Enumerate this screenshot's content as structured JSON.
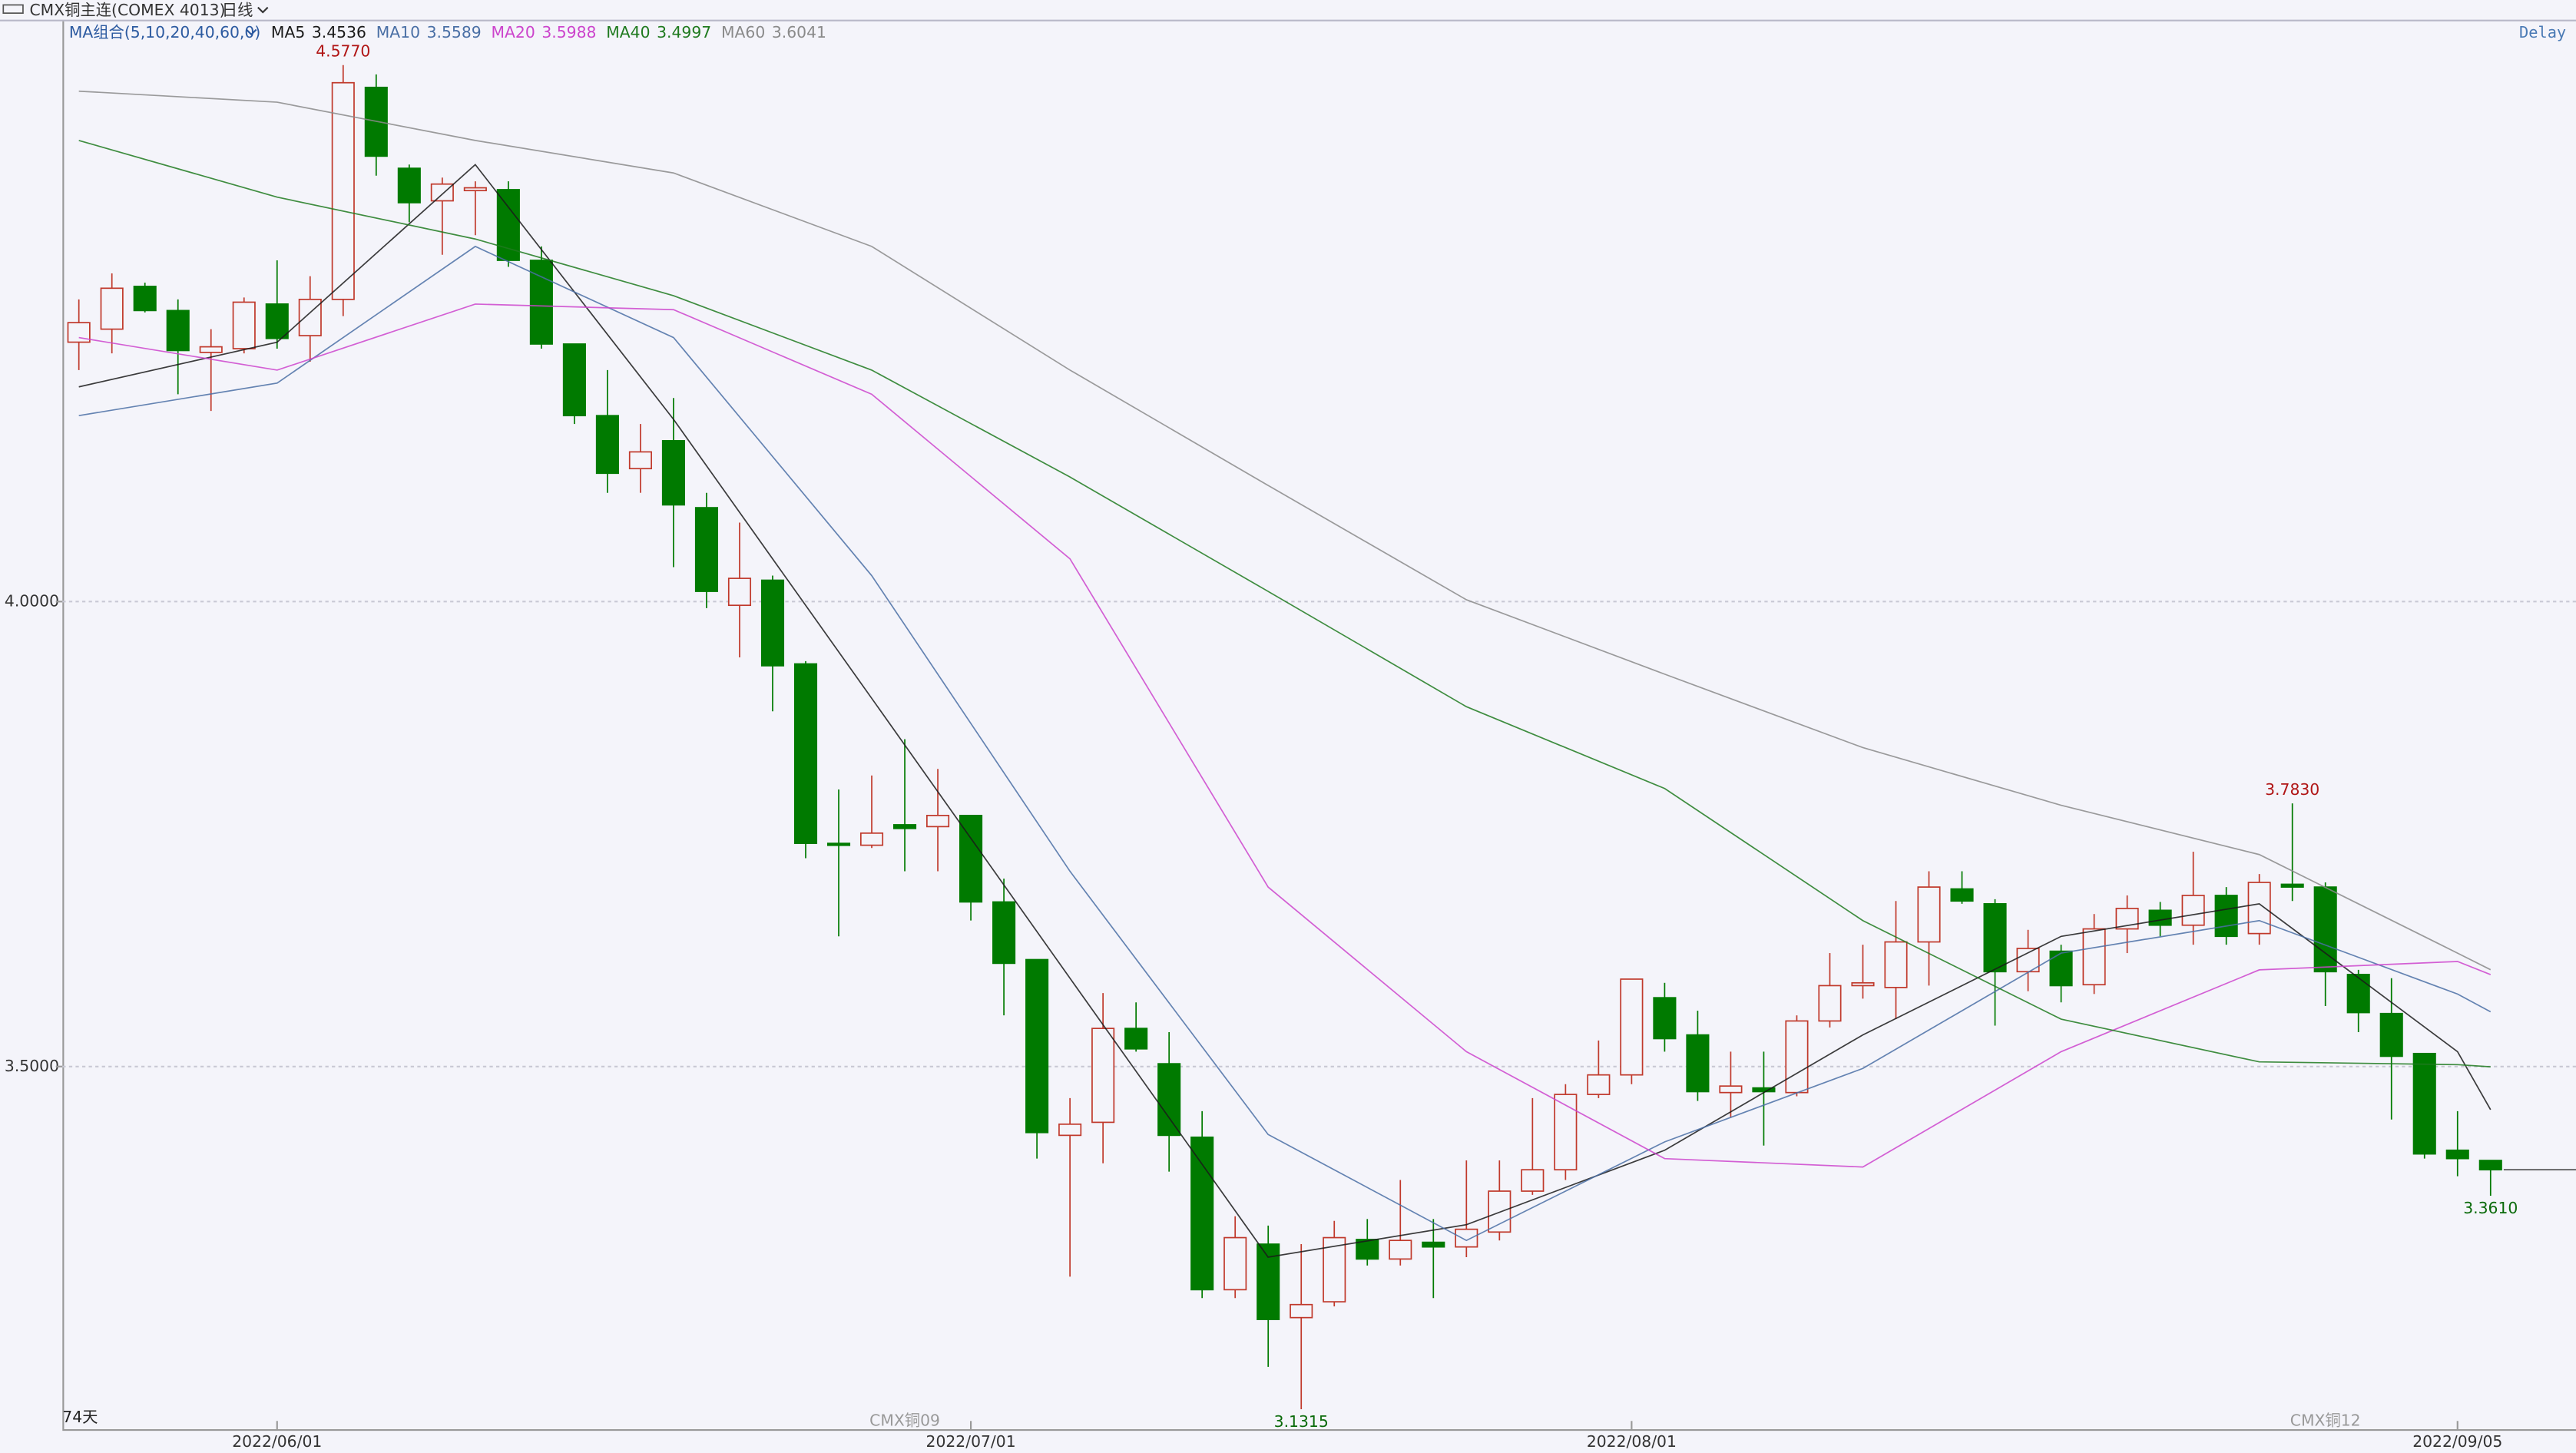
{
  "header": {
    "symbol": "CMX铜主连(COMEX 4013)",
    "period": "日线",
    "ma_group": "MA组合(5,10,20,40,60,0)",
    "status": "Delay",
    "count": "74天"
  },
  "chart_data": {
    "type": "candlestick",
    "categories": [
      null,
      null,
      null,
      null,
      null,
      null,
      "2022/06/01",
      null,
      null,
      null,
      null,
      null,
      null,
      null,
      null,
      null,
      null,
      null,
      null,
      null,
      null,
      null,
      null,
      null,
      null,
      null,
      null,
      "2022/07/01",
      null,
      null,
      null,
      null,
      null,
      null,
      null,
      null,
      null,
      null,
      null,
      null,
      null,
      null,
      null,
      null,
      null,
      null,
      null,
      "2022/08/01",
      null,
      null,
      null,
      null,
      null,
      null,
      null,
      null,
      null,
      null,
      null,
      null,
      null,
      null,
      null,
      null,
      null,
      null,
      null,
      null,
      null,
      null,
      null,
      null,
      "2022/09/05",
      null
    ],
    "contracts": [
      null,
      null,
      null,
      null,
      null,
      null,
      null,
      null,
      null,
      null,
      null,
      null,
      null,
      null,
      null,
      null,
      null,
      null,
      null,
      null,
      null,
      null,
      null,
      null,
      null,
      "CMX铜09",
      null,
      null,
      null,
      null,
      null,
      null,
      null,
      null,
      null,
      null,
      null,
      null,
      null,
      null,
      null,
      null,
      null,
      null,
      null,
      null,
      null,
      null,
      null,
      null,
      null,
      null,
      null,
      null,
      null,
      null,
      null,
      null,
      null,
      null,
      null,
      null,
      null,
      null,
      null,
      null,
      null,
      null,
      "CMX铜12",
      null,
      null,
      null,
      null,
      null
    ],
    "open": [
      4.279,
      4.293,
      4.339,
      4.313,
      4.268,
      4.272,
      4.32,
      4.286,
      4.325,
      4.553,
      4.466,
      4.431,
      4.442,
      4.443,
      4.367,
      4.277,
      4.2,
      4.143,
      4.173,
      4.101,
      3.996,
      4.023,
      3.933,
      3.74,
      3.738,
      3.76,
      3.758,
      3.77,
      3.677,
      3.615,
      3.426,
      3.44,
      3.541,
      3.503,
      3.424,
      3.26,
      3.309,
      3.23,
      3.247,
      3.314,
      3.293,
      3.311,
      3.306,
      3.322,
      3.366,
      3.389,
      3.47,
      3.491,
      3.574,
      3.534,
      3.472,
      3.477,
      3.472,
      3.549,
      3.587,
      3.585,
      3.634,
      3.691,
      3.675,
      3.602,
      3.624,
      3.588,
      3.648,
      3.668,
      3.652,
      3.684,
      3.643,
      3.696,
      3.693,
      3.599,
      3.557,
      3.514,
      3.41,
      3.399
    ],
    "high": [
      4.325,
      4.353,
      4.343,
      4.325,
      4.293,
      4.327,
      4.367,
      4.35,
      4.577,
      4.567,
      4.47,
      4.456,
      4.452,
      4.452,
      4.382,
      4.277,
      4.249,
      4.191,
      4.219,
      4.117,
      4.085,
      4.028,
      3.936,
      3.798,
      3.813,
      3.852,
      3.82,
      3.77,
      3.702,
      3.615,
      3.466,
      3.579,
      3.569,
      3.537,
      3.452,
      3.339,
      3.329,
      3.309,
      3.334,
      3.336,
      3.378,
      3.336,
      3.399,
      3.399,
      3.466,
      3.481,
      3.528,
      3.594,
      3.59,
      3.56,
      3.516,
      3.516,
      3.555,
      3.622,
      3.631,
      3.678,
      3.71,
      3.71,
      3.68,
      3.647,
      3.631,
      3.664,
      3.684,
      3.677,
      3.731,
      3.693,
      3.707,
      3.783,
      3.698,
      3.604,
      3.595,
      3.514,
      3.452,
      3.399
    ],
    "low": [
      4.249,
      4.267,
      4.311,
      4.223,
      4.205,
      4.267,
      4.272,
      4.258,
      4.307,
      4.458,
      4.408,
      4.373,
      4.394,
      4.36,
      4.272,
      4.191,
      4.117,
      4.117,
      4.037,
      3.993,
      3.94,
      3.882,
      3.724,
      3.64,
      3.735,
      3.71,
      3.71,
      3.657,
      3.555,
      3.401,
      3.274,
      3.396,
      3.516,
      3.387,
      3.251,
      3.251,
      3.177,
      3.1315,
      3.242,
      3.286,
      3.286,
      3.251,
      3.295,
      3.313,
      3.362,
      3.378,
      3.466,
      3.481,
      3.516,
      3.463,
      3.445,
      3.415,
      3.468,
      3.542,
      3.573,
      3.551,
      3.587,
      3.675,
      3.544,
      3.581,
      3.569,
      3.578,
      3.622,
      3.64,
      3.631,
      3.631,
      3.631,
      3.678,
      3.565,
      3.537,
      3.443,
      3.401,
      3.382,
      3.361
    ],
    "close": [
      4.3,
      4.337,
      4.313,
      4.27,
      4.274,
      4.322,
      4.283,
      4.325,
      4.558,
      4.479,
      4.429,
      4.449,
      4.445,
      4.367,
      4.277,
      4.2,
      4.138,
      4.161,
      4.104,
      4.011,
      4.025,
      3.931,
      3.74,
      3.738,
      3.751,
      3.756,
      3.77,
      3.677,
      3.611,
      3.429,
      3.438,
      3.541,
      3.519,
      3.426,
      3.26,
      3.316,
      3.228,
      3.244,
      3.316,
      3.293,
      3.313,
      3.306,
      3.325,
      3.366,
      3.389,
      3.47,
      3.491,
      3.594,
      3.53,
      3.473,
      3.479,
      3.473,
      3.549,
      3.587,
      3.59,
      3.634,
      3.693,
      3.678,
      3.602,
      3.627,
      3.587,
      3.648,
      3.67,
      3.652,
      3.684,
      3.64,
      3.698,
      3.693,
      3.602,
      3.558,
      3.511,
      3.406,
      3.401,
      3.389
    ],
    "up_color": "#c0392b",
    "down_color": "#007a00",
    "ylim": [
      3.11,
      4.624
    ],
    "yticks": [
      {
        "value": 4,
        "label": "4.0000"
      },
      {
        "value": 3.5,
        "label": "3.5000"
      }
    ],
    "grid": true,
    "annotations": [
      {
        "value": 4.577,
        "label": "4.5770"
      },
      {
        "value": 3.783,
        "label": "3.7830"
      },
      {
        "value": 3.1315,
        "label": "3.1315"
      },
      {
        "value": 3.361,
        "label": "3.3610"
      }
    ],
    "ma_series": [
      {
        "name": "MA5",
        "color": "#1a1a1a",
        "last_label": "3.4536",
        "x": [
          0,
          6,
          12,
          18,
          24,
          30,
          36,
          42,
          48,
          54,
          60,
          66,
          72,
          73
        ],
        "values": [
          4.231,
          4.279,
          4.47,
          4.196,
          3.896,
          3.595,
          3.295,
          3.33,
          3.41,
          3.534,
          3.64,
          3.675,
          3.516,
          3.4536
        ]
      },
      {
        "name": "MA10",
        "color": "#4a6fa5",
        "last_label": "3.5589",
        "x": [
          0,
          6,
          12,
          18,
          24,
          30,
          36,
          42,
          48,
          54,
          60,
          66,
          72,
          73
        ],
        "values": [
          4.2,
          4.235,
          4.382,
          4.284,
          4.028,
          3.71,
          3.427,
          3.313,
          3.419,
          3.498,
          3.622,
          3.657,
          3.578,
          3.5589
        ]
      },
      {
        "name": "MA20",
        "color": "#cc44cc",
        "last_label": "3.5988",
        "x": [
          0,
          6,
          12,
          18,
          24,
          30,
          36,
          42,
          48,
          54,
          60,
          66,
          72,
          73
        ],
        "values": [
          4.284,
          4.249,
          4.32,
          4.314,
          4.223,
          4.046,
          3.693,
          3.516,
          3.401,
          3.392,
          3.516,
          3.604,
          3.613,
          3.5988
        ]
      },
      {
        "name": "MA40",
        "color": "#1f7a1f",
        "last_label": "3.4997",
        "x": [
          0,
          6,
          12,
          18,
          24,
          30,
          36,
          42,
          48,
          54,
          60,
          66,
          72,
          73
        ],
        "values": [
          4.496,
          4.435,
          4.39,
          4.329,
          4.249,
          4.134,
          4.011,
          3.887,
          3.799,
          3.657,
          3.551,
          3.505,
          3.502,
          3.4997
        ]
      },
      {
        "name": "MA60",
        "color": "#8a8a8a",
        "last_label": "3.6041",
        "x": [
          0,
          6,
          12,
          18,
          24,
          30,
          36,
          42,
          48,
          54,
          60,
          66,
          72,
          73
        ],
        "values": [
          4.549,
          4.537,
          4.496,
          4.461,
          4.382,
          4.249,
          4.125,
          4.002,
          3.922,
          3.843,
          3.781,
          3.728,
          3.622,
          3.6041
        ]
      }
    ]
  }
}
